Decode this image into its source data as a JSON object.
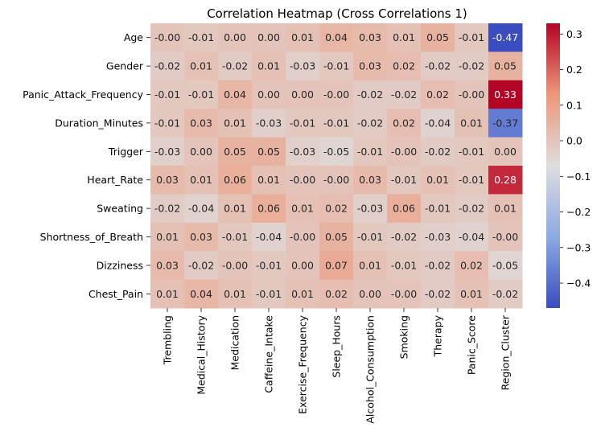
{
  "chart_data": {
    "type": "heatmap",
    "title": "Correlation Heatmap (Cross Correlations 1)",
    "xlabel": "",
    "ylabel": "",
    "colormap": "coolwarm",
    "colors": {
      "low": "#3b4cc0",
      "mid": "#dddddd",
      "high": "#b40426"
    },
    "vmin": -0.47,
    "vmax": 0.33,
    "colorbar_ticks": [
      0.3,
      0.2,
      0.1,
      0.0,
      -0.1,
      -0.2,
      -0.3,
      -0.4
    ],
    "colorbar_tick_labels": [
      "0.3",
      "0.2",
      "0.1",
      "0.0",
      "−0.1",
      "−0.2",
      "−0.3",
      "−0.4"
    ],
    "rows": [
      "Age",
      "Gender",
      "Panic_Attack_Frequency",
      "Duration_Minutes",
      "Trigger",
      "Heart_Rate",
      "Sweating",
      "Shortness_of_Breath",
      "Dizziness",
      "Chest_Pain"
    ],
    "columns": [
      "Trembling",
      "Medical_History",
      "Medication",
      "Caffeine_Intake",
      "Exercise_Frequency",
      "Sleep_Hours",
      "Alcohol_Consumption",
      "Smoking",
      "Therapy",
      "Panic_Score",
      "Region_Cluster"
    ],
    "values": [
      [
        -0.0,
        -0.01,
        0.0,
        0.0,
        0.01,
        0.04,
        0.03,
        0.01,
        0.05,
        -0.01,
        -0.47
      ],
      [
        -0.02,
        0.01,
        -0.02,
        0.01,
        -0.03,
        -0.01,
        0.03,
        0.02,
        -0.02,
        -0.02,
        0.05
      ],
      [
        -0.01,
        -0.01,
        0.04,
        0.0,
        0.0,
        -0.0,
        -0.02,
        -0.02,
        0.02,
        -0.0,
        0.33
      ],
      [
        -0.01,
        0.03,
        0.01,
        -0.03,
        -0.01,
        -0.01,
        -0.02,
        0.02,
        -0.04,
        0.01,
        -0.37
      ],
      [
        -0.03,
        0.0,
        0.05,
        0.05,
        -0.03,
        -0.05,
        -0.01,
        -0.0,
        -0.02,
        -0.01,
        0.0
      ],
      [
        0.03,
        0.01,
        0.06,
        0.01,
        -0.0,
        -0.0,
        0.03,
        -0.01,
        0.01,
        -0.01,
        0.28
      ],
      [
        -0.02,
        -0.04,
        0.01,
        0.06,
        0.01,
        0.02,
        -0.03,
        0.06,
        -0.01,
        -0.02,
        0.01
      ],
      [
        0.01,
        0.03,
        -0.01,
        -0.04,
        -0.0,
        0.05,
        -0.01,
        -0.02,
        -0.03,
        -0.04,
        -0.0
      ],
      [
        0.03,
        -0.02,
        -0.0,
        -0.01,
        0.0,
        0.07,
        0.01,
        -0.01,
        -0.02,
        0.02,
        -0.05
      ],
      [
        0.01,
        0.04,
        0.01,
        -0.01,
        0.01,
        0.02,
        0.0,
        -0.0,
        -0.02,
        0.01,
        -0.02
      ]
    ],
    "cell_labels": [
      [
        "-0.00",
        "-0.01",
        "0.00",
        "0.00",
        "0.01",
        "0.04",
        "0.03",
        "0.01",
        "0.05",
        "-0.01",
        "-0.47"
      ],
      [
        "-0.02",
        "0.01",
        "-0.02",
        "0.01",
        "-0.03",
        "-0.01",
        "0.03",
        "0.02",
        "-0.02",
        "-0.02",
        "0.05"
      ],
      [
        "-0.01",
        "-0.01",
        "0.04",
        "0.00",
        "0.00",
        "-0.00",
        "-0.02",
        "-0.02",
        "0.02",
        "-0.00",
        "0.33"
      ],
      [
        "-0.01",
        "0.03",
        "0.01",
        "-0.03",
        "-0.01",
        "-0.01",
        "-0.02",
        "0.02",
        "-0.04",
        "0.01",
        "-0.37"
      ],
      [
        "-0.03",
        "0.00",
        "0.05",
        "0.05",
        "-0.03",
        "-0.05",
        "-0.01",
        "-0.00",
        "-0.02",
        "-0.01",
        "0.00"
      ],
      [
        "0.03",
        "0.01",
        "0.06",
        "0.01",
        "-0.00",
        "-0.00",
        "0.03",
        "-0.01",
        "0.01",
        "-0.01",
        "0.28"
      ],
      [
        "-0.02",
        "-0.04",
        "0.01",
        "0.06",
        "0.01",
        "0.02",
        "-0.03",
        "0.06",
        "-0.01",
        "-0.02",
        "0.01"
      ],
      [
        "0.01",
        "0.03",
        "-0.01",
        "-0.04",
        "-0.00",
        "0.05",
        "-0.01",
        "-0.02",
        "-0.03",
        "-0.04",
        "-0.00"
      ],
      [
        "0.03",
        "-0.02",
        "-0.00",
        "-0.01",
        "0.00",
        "0.07",
        "0.01",
        "-0.01",
        "-0.02",
        "0.02",
        "-0.05"
      ],
      [
        "0.01",
        "0.04",
        "0.01",
        "-0.01",
        "0.01",
        "0.02",
        "0.00",
        "-0.00",
        "-0.02",
        "0.01",
        "-0.02"
      ]
    ]
  }
}
